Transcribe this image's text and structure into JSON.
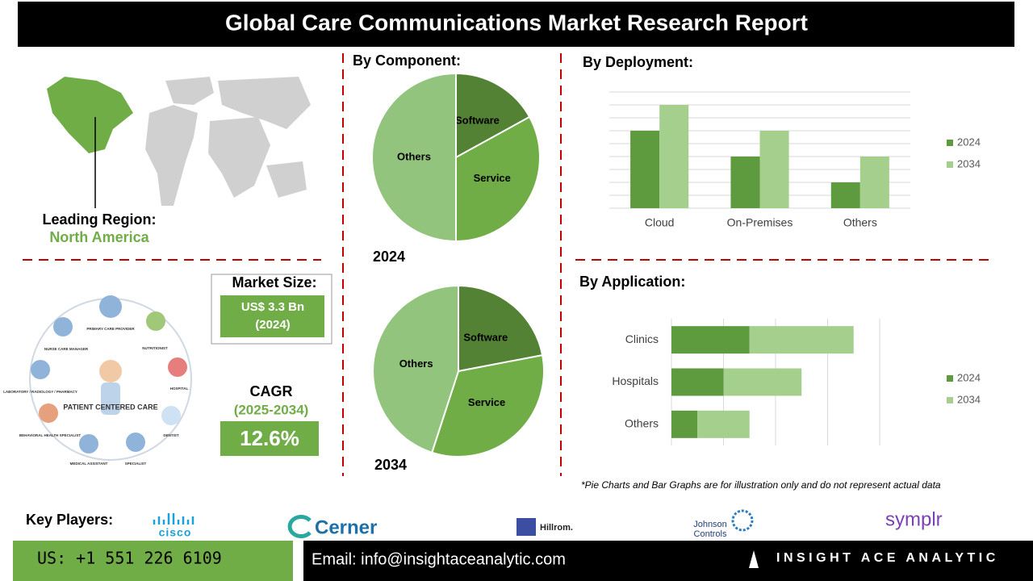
{
  "header": {
    "title": "Global Care Communications Market Research Report"
  },
  "region": {
    "label": "Leading Region:",
    "value": "North America"
  },
  "illustration": {
    "labels": [
      "PRIMARY CARE PROVIDER",
      "NURSE CARE MANAGER",
      "NUTRITIONIST",
      "HOSPITAL",
      "LABORATORY / RADIOLOGY / PHARMACY",
      "PATIENT CENTERED CARE",
      "BEHAVIORAL HEALTH SPECIALIST",
      "DENTIST",
      "MEDICAL ASSISTANT",
      "SPECIALIST"
    ]
  },
  "market_size": {
    "label": "Market Size:",
    "value": "US$ 3.3 Bn",
    "year": "(2024)"
  },
  "cagr": {
    "label": "CAGR",
    "period": "(2025-2034)",
    "value": "12.6%"
  },
  "chart_data": [
    {
      "type": "pie",
      "title": "By Component:",
      "subtitle": "2024",
      "categories": [
        "Software",
        "Service",
        "Others"
      ],
      "values": [
        17,
        33,
        50
      ],
      "colors": [
        "#548235",
        "#70ad47",
        "#93c47d"
      ]
    },
    {
      "type": "pie",
      "subtitle": "2034",
      "categories": [
        "Software",
        "Service",
        "Others"
      ],
      "values": [
        22,
        33,
        45
      ],
      "colors": [
        "#548235",
        "#70ad47",
        "#93c47d"
      ]
    },
    {
      "type": "bar",
      "title": "By Deployment:",
      "categories": [
        "Cloud",
        "On-Premises",
        "Others"
      ],
      "series": [
        {
          "name": "2024",
          "color": "#5e9a3e",
          "values": [
            6,
            4,
            2
          ]
        },
        {
          "name": "2034",
          "color": "#a5cf8d",
          "values": [
            8,
            6,
            4
          ]
        }
      ],
      "ylim": [
        0,
        9
      ],
      "yticks": [
        0,
        1,
        2,
        3,
        4,
        5,
        6,
        7,
        8,
        9
      ],
      "grid": true,
      "legend": "right"
    },
    {
      "type": "stacked-hbar",
      "title": "By Application:",
      "categories": [
        "Clinics",
        "Hospitals",
        "Others"
      ],
      "series": [
        {
          "name": "2024",
          "color": "#5e9a3e",
          "values": [
            1.5,
            1,
            0.5
          ]
        },
        {
          "name": "2034",
          "color": "#a5cf8d",
          "values": [
            2,
            1.5,
            1
          ]
        }
      ],
      "xlim": [
        0,
        4
      ],
      "xticks": [
        0,
        1,
        2,
        3,
        4
      ],
      "grid": true,
      "legend": "right"
    }
  ],
  "note": "*Pie Charts and Bar Graphs are for illustration only and do not represent actual data",
  "key_players": {
    "label": "Key Players:",
    "logos": [
      "cisco",
      "Cerner",
      "Hillrom.",
      "Johnson",
      "Controls",
      "symplr"
    ]
  },
  "footer": {
    "phone": "US: +1 551 226 6109",
    "email": "Email: info@insightaceanalytic.com",
    "brand": "INSIGHT ACE ANALYTIC"
  }
}
